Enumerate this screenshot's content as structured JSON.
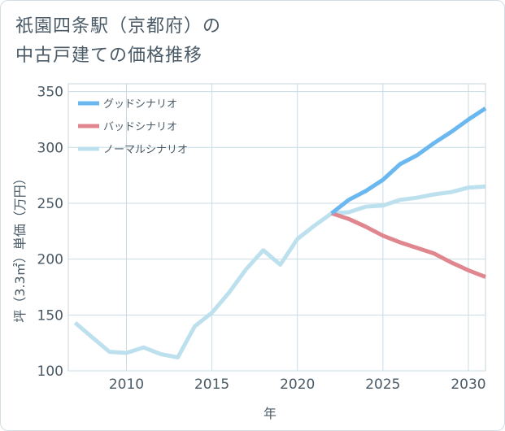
{
  "page": {
    "title_line1": "祇園四条駅（京都府）の",
    "title_line2": "中古戸建ての価格推移"
  },
  "chart_data": {
    "type": "line",
    "xlabel": "年",
    "ylabel": "坪（3.3㎡）単価（万円）",
    "xlim": [
      2006.6,
      2031
    ],
    "ylim": [
      100,
      357
    ],
    "xticks": [
      2010,
      2015,
      2020,
      2025,
      2030
    ],
    "yticks": [
      100,
      150,
      200,
      250,
      300,
      350
    ],
    "grid": true,
    "legend_position": "top-left",
    "series": [
      {
        "name": "グッドシナリオ",
        "color": "#6ab8ef",
        "x": [
          2022,
          2023,
          2024,
          2025,
          2026,
          2027,
          2028,
          2029,
          2030,
          2031
        ],
        "y": [
          241,
          253,
          261,
          271,
          285,
          293,
          304,
          314,
          325,
          335
        ]
      },
      {
        "name": "バッドシナリオ",
        "color": "#e0868e",
        "x": [
          2022,
          2023,
          2024,
          2025,
          2026,
          2027,
          2028,
          2029,
          2030,
          2031
        ],
        "y": [
          241,
          236,
          229,
          221,
          215,
          210,
          205,
          197,
          190,
          184
        ]
      },
      {
        "name": "ノーマルシナリオ",
        "color": "#bde0ee",
        "x": [
          2007,
          2008,
          2009,
          2010,
          2011,
          2012,
          2013,
          2014,
          2015,
          2016,
          2017,
          2018,
          2019,
          2020,
          2021,
          2022,
          2023,
          2024,
          2025,
          2026,
          2027,
          2028,
          2029,
          2030,
          2031
        ],
        "y": [
          143,
          130,
          117,
          116,
          121,
          115,
          112,
          140,
          152,
          170,
          191,
          208,
          195,
          218,
          230,
          241,
          242,
          247,
          248,
          253,
          255,
          258,
          260,
          264,
          265
        ]
      }
    ]
  }
}
